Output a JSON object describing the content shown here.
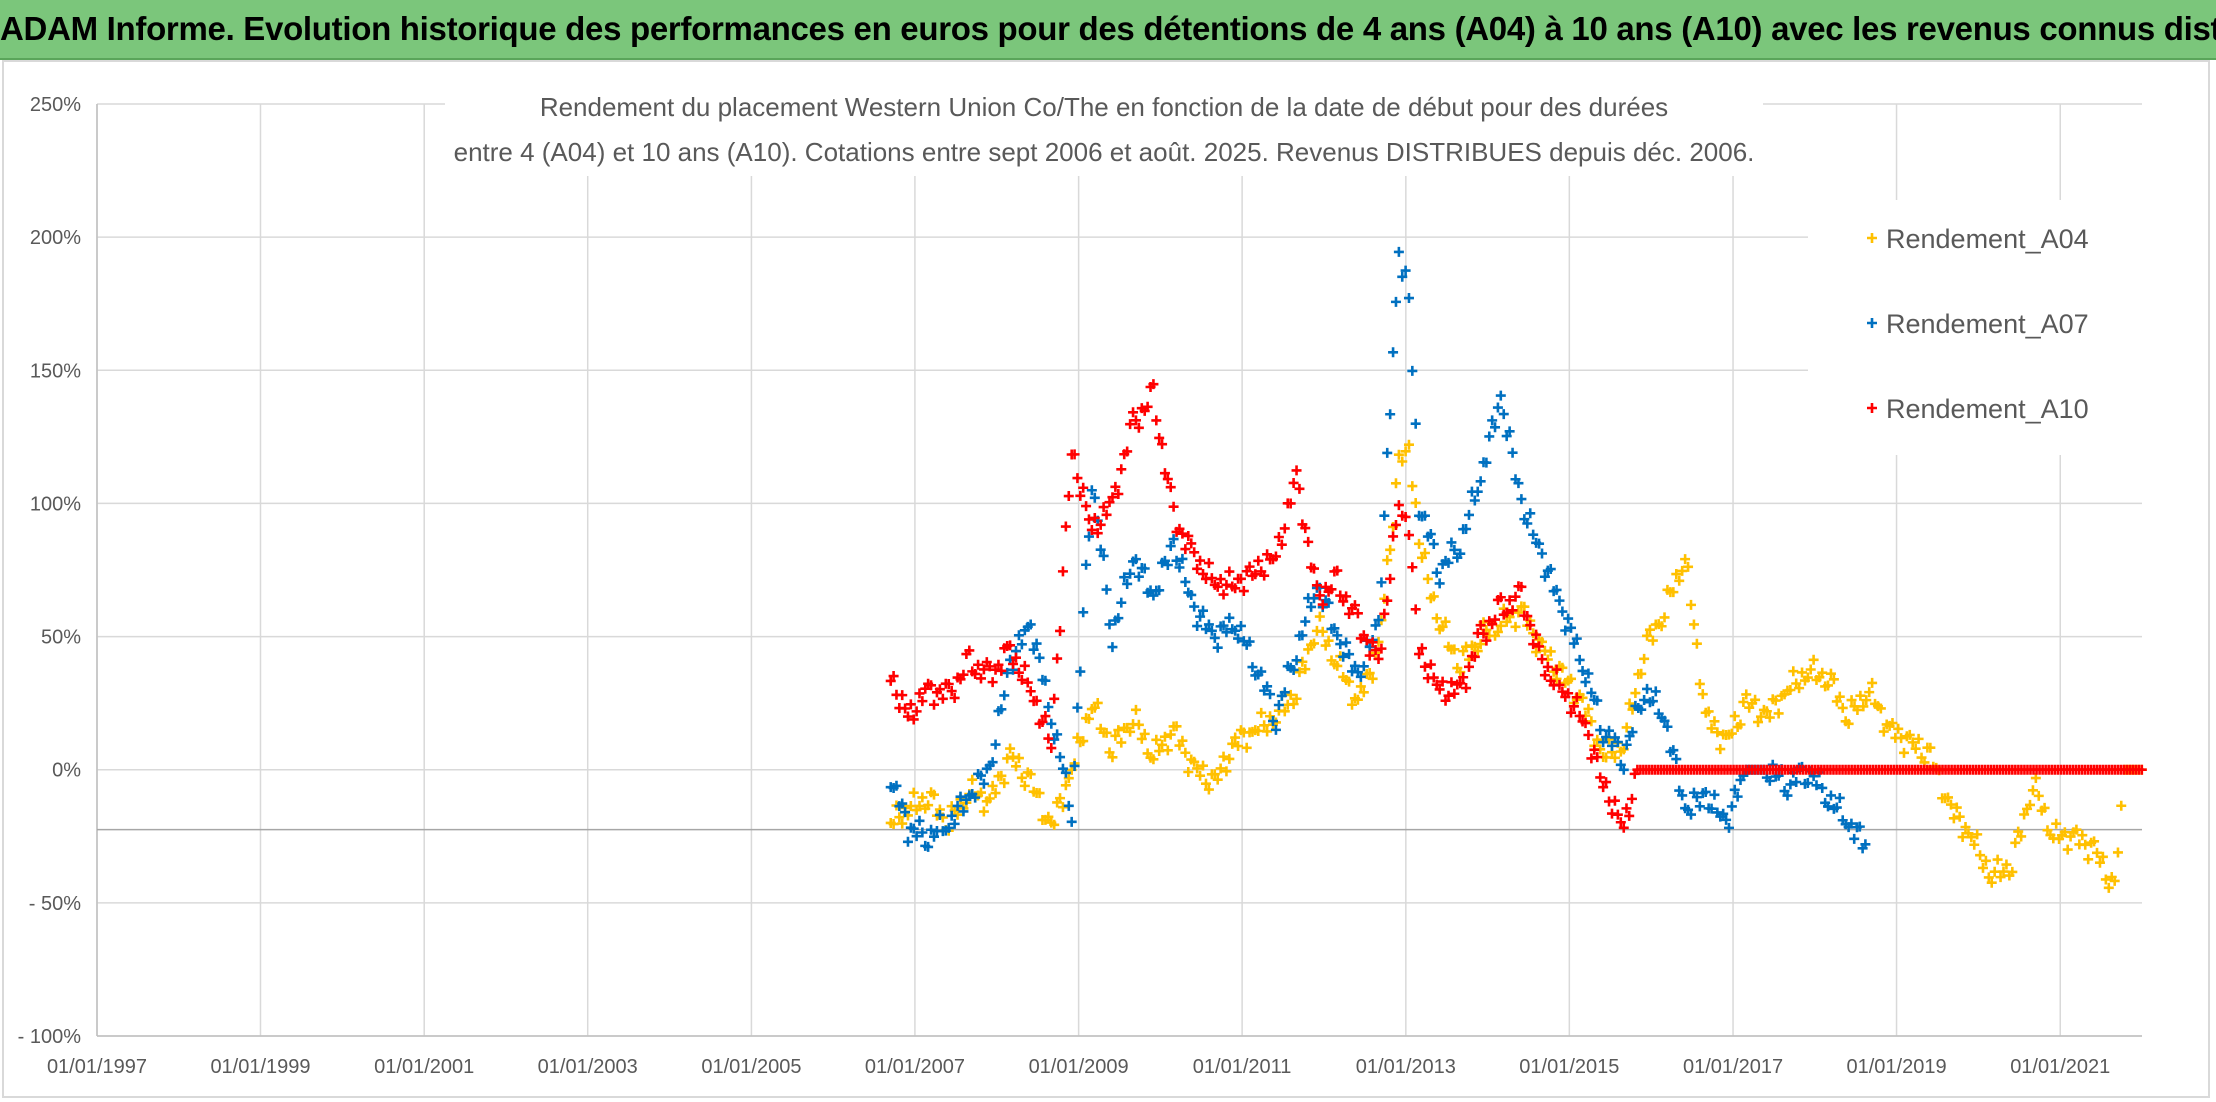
{
  "page": {
    "banner": "ADAM Informe. Evolution historique des performances en euros pour des détentions de 4 ans (A04) à 10 ans (A10) avec les revenus connus distribués"
  },
  "chart_data": {
    "type": "scatter",
    "title_lines": [
      "Rendement du placement Western Union Co/The en fonction de la date de début pour des durées",
      "entre 4 (A04) et 10 ans (A10). Cotations entre sept 2006 et août. 2025. Revenus DISTRIBUES depuis déc. 2006."
    ],
    "xlabel": "",
    "ylabel": "",
    "x_range": [
      "1997-01-01",
      "2022-01-01"
    ],
    "x_ticks": [
      "01/01/1997",
      "01/01/1999",
      "01/01/2001",
      "01/01/2003",
      "01/01/2005",
      "01/01/2007",
      "01/01/2009",
      "01/01/2011",
      "01/01/2013",
      "01/01/2015",
      "01/01/2017",
      "01/01/2019",
      "01/01/2021"
    ],
    "y_range": [
      -100,
      250
    ],
    "y_ticks": [
      "250%",
      "200%",
      "150%",
      "100%",
      "50%",
      "0%",
      "- 50%",
      "- 100%"
    ],
    "grid": true,
    "legend_position": "right",
    "marker": "+",
    "series": [
      {
        "name": "Rendement_A04",
        "color": "#ffc000",
        "points": [
          [
            "2006-09-15",
            -20
          ],
          [
            "2006-12-01",
            -15
          ],
          [
            "2007-03-01",
            -10
          ],
          [
            "2007-06-01",
            -20
          ],
          [
            "2007-09-01",
            -8
          ],
          [
            "2007-12-01",
            -12
          ],
          [
            "2008-03-01",
            5
          ],
          [
            "2008-06-01",
            -5
          ],
          [
            "2008-09-01",
            -22
          ],
          [
            "2008-12-01",
            0
          ],
          [
            "2009-03-01",
            25
          ],
          [
            "2009-06-01",
            8
          ],
          [
            "2009-09-01",
            20
          ],
          [
            "2009-12-01",
            5
          ],
          [
            "2010-03-01",
            15
          ],
          [
            "2010-06-01",
            0
          ],
          [
            "2010-09-01",
            -5
          ],
          [
            "2010-12-01",
            10
          ],
          [
            "2011-03-01",
            15
          ],
          [
            "2011-06-01",
            20
          ],
          [
            "2011-09-01",
            30
          ],
          [
            "2011-12-01",
            55
          ],
          [
            "2012-03-01",
            40
          ],
          [
            "2012-06-01",
            25
          ],
          [
            "2012-09-01",
            45
          ],
          [
            "2012-12-01",
            115
          ],
          [
            "2013-01-15",
            120
          ],
          [
            "2013-03-01",
            85
          ],
          [
            "2013-06-01",
            55
          ],
          [
            "2013-09-01",
            40
          ],
          [
            "2013-12-01",
            50
          ],
          [
            "2014-03-01",
            55
          ],
          [
            "2014-06-01",
            60
          ],
          [
            "2014-09-01",
            45
          ],
          [
            "2014-12-01",
            35
          ],
          [
            "2015-03-01",
            25
          ],
          [
            "2015-06-01",
            5
          ],
          [
            "2015-09-01",
            10
          ],
          [
            "2015-12-01",
            45
          ],
          [
            "2016-03-01",
            60
          ],
          [
            "2016-06-01",
            80
          ],
          [
            "2016-09-01",
            20
          ],
          [
            "2016-12-01",
            10
          ],
          [
            "2017-03-01",
            25
          ],
          [
            "2017-06-01",
            20
          ],
          [
            "2017-09-01",
            30
          ],
          [
            "2017-12-01",
            37
          ],
          [
            "2018-03-01",
            35
          ],
          [
            "2018-06-01",
            20
          ],
          [
            "2018-09-01",
            30
          ],
          [
            "2018-12-01",
            15
          ],
          [
            "2019-03-01",
            10
          ],
          [
            "2019-06-01",
            5
          ],
          [
            "2019-09-01",
            -15
          ],
          [
            "2019-12-01",
            -25
          ],
          [
            "2020-03-01",
            -40
          ],
          [
            "2020-06-01",
            -35
          ],
          [
            "2020-09-01",
            -5
          ],
          [
            "2020-12-01",
            -25
          ],
          [
            "2021-03-01",
            -25
          ],
          [
            "2021-06-01",
            -30
          ],
          [
            "2021-09-01",
            -45
          ],
          [
            "2021-10-15",
            0
          ],
          [
            "2021-12-31",
            0
          ]
        ]
      },
      {
        "name": "Rendement_A07",
        "color": "#0070c0",
        "points": [
          [
            "2006-09-15",
            -2
          ],
          [
            "2006-12-01",
            -22
          ],
          [
            "2007-03-01",
            -25
          ],
          [
            "2007-06-01",
            -20
          ],
          [
            "2007-09-01",
            -10
          ],
          [
            "2007-12-01",
            0
          ],
          [
            "2008-03-01",
            40
          ],
          [
            "2008-06-01",
            55
          ],
          [
            "2008-09-01",
            20
          ],
          [
            "2008-12-01",
            -15
          ],
          [
            "2009-03-01",
            110
          ],
          [
            "2009-06-01",
            50
          ],
          [
            "2009-09-01",
            80
          ],
          [
            "2009-12-01",
            65
          ],
          [
            "2010-03-01",
            85
          ],
          [
            "2010-06-01",
            60
          ],
          [
            "2010-09-01",
            50
          ],
          [
            "2010-12-01",
            55
          ],
          [
            "2011-03-01",
            40
          ],
          [
            "2011-06-01",
            20
          ],
          [
            "2011-09-01",
            45
          ],
          [
            "2011-12-01",
            70
          ],
          [
            "2012-03-01",
            50
          ],
          [
            "2012-06-01",
            35
          ],
          [
            "2012-09-01",
            55
          ],
          [
            "2012-12-01",
            195
          ],
          [
            "2013-01-15",
            180
          ],
          [
            "2013-03-01",
            100
          ],
          [
            "2013-06-01",
            75
          ],
          [
            "2013-09-01",
            85
          ],
          [
            "2013-12-01",
            110
          ],
          [
            "2014-03-01",
            140
          ],
          [
            "2014-06-01",
            100
          ],
          [
            "2014-09-01",
            80
          ],
          [
            "2014-12-01",
            60
          ],
          [
            "2015-03-01",
            40
          ],
          [
            "2015-06-01",
            15
          ],
          [
            "2015-09-01",
            5
          ],
          [
            "2015-12-01",
            30
          ],
          [
            "2016-03-01",
            20
          ],
          [
            "2016-06-01",
            -15
          ],
          [
            "2016-09-01",
            -10
          ],
          [
            "2016-12-01",
            -20
          ],
          [
            "2017-03-01",
            0
          ],
          [
            "2017-06-01",
            0
          ],
          [
            "2017-09-01",
            -5
          ],
          [
            "2017-12-01",
            0
          ],
          [
            "2018-03-01",
            -10
          ],
          [
            "2018-06-01",
            -20
          ],
          [
            "2018-08-15",
            -28
          ]
        ]
      },
      {
        "name": "Rendement_A10",
        "color": "#ff0000",
        "points": [
          [
            "2006-09-15",
            35
          ],
          [
            "2006-12-01",
            20
          ],
          [
            "2007-03-01",
            30
          ],
          [
            "2007-06-01",
            28
          ],
          [
            "2007-09-01",
            40
          ],
          [
            "2007-12-01",
            35
          ],
          [
            "2008-03-01",
            45
          ],
          [
            "2008-06-01",
            30
          ],
          [
            "2008-09-01",
            10
          ],
          [
            "2008-12-01",
            120
          ],
          [
            "2009-03-01",
            90
          ],
          [
            "2009-06-01",
            100
          ],
          [
            "2009-09-01",
            130
          ],
          [
            "2009-12-01",
            140
          ],
          [
            "2010-03-01",
            95
          ],
          [
            "2010-06-01",
            80
          ],
          [
            "2010-09-01",
            70
          ],
          [
            "2010-12-01",
            70
          ],
          [
            "2011-03-01",
            75
          ],
          [
            "2011-06-01",
            80
          ],
          [
            "2011-09-01",
            110
          ],
          [
            "2011-12-01",
            65
          ],
          [
            "2012-03-01",
            70
          ],
          [
            "2012-06-01",
            55
          ],
          [
            "2012-09-01",
            40
          ],
          [
            "2012-12-01",
            100
          ],
          [
            "2013-01-15",
            90
          ],
          [
            "2013-03-01",
            45
          ],
          [
            "2013-06-01",
            30
          ],
          [
            "2013-09-01",
            30
          ],
          [
            "2013-12-01",
            50
          ],
          [
            "2014-03-01",
            60
          ],
          [
            "2014-06-01",
            65
          ],
          [
            "2014-09-01",
            40
          ],
          [
            "2014-12-01",
            30
          ],
          [
            "2015-03-01",
            20
          ],
          [
            "2015-06-01",
            -5
          ],
          [
            "2015-09-01",
            -22
          ],
          [
            "2015-11-01",
            0
          ],
          [
            "2016-06-01",
            0
          ],
          [
            "2017-06-01",
            0
          ],
          [
            "2018-06-01",
            0
          ],
          [
            "2019-06-01",
            0
          ],
          [
            "2020-06-01",
            0
          ],
          [
            "2021-06-01",
            0
          ],
          [
            "2021-12-31",
            0
          ]
        ]
      }
    ]
  }
}
